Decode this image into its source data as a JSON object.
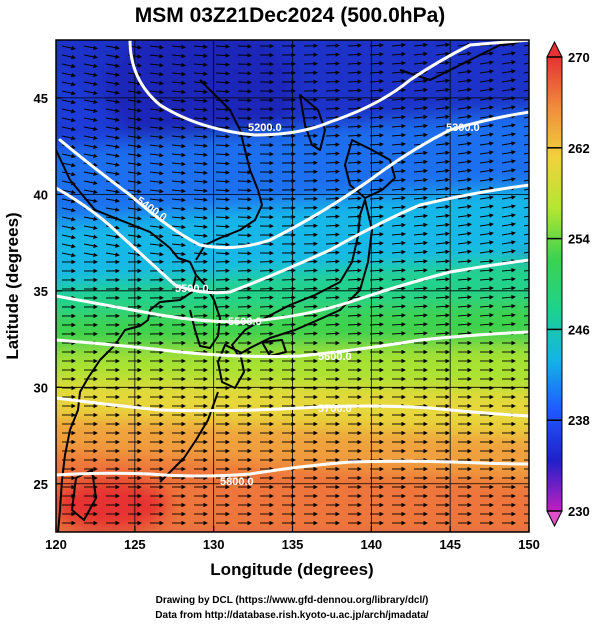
{
  "title": "MSM 03Z21Dec2024 (500.0hPa)",
  "x_axis": {
    "label": "Longitude (degrees)",
    "range": [
      120,
      150
    ],
    "ticks": [
      "120",
      "125",
      "130",
      "135",
      "140",
      "145",
      "150"
    ]
  },
  "y_axis": {
    "label": "Latitude  (degrees)",
    "range": [
      22.5,
      48
    ],
    "ticks": [
      "25",
      "30",
      "35",
      "40",
      "45"
    ]
  },
  "colorbar": {
    "range": [
      230,
      270
    ],
    "ticks": [
      "270",
      "262",
      "254",
      "246",
      "238",
      "230"
    ],
    "stops": [
      "#c020c0",
      "#2020c8",
      "#1e5aff",
      "#14b4e6",
      "#1ed28c",
      "#3cd250",
      "#b4e632",
      "#f0d23c",
      "#f08c3c",
      "#e63232"
    ]
  },
  "contours": [
    {
      "label": "5200.0"
    },
    {
      "label": "5300.0"
    },
    {
      "label": "5400.0"
    },
    {
      "label": "5500.0"
    },
    {
      "label": "5600.0"
    },
    {
      "label": "5700.0"
    },
    {
      "label": "5800.0"
    }
  ],
  "credits": [
    "Drawing by DCL (https://www.gfd-dennou.org/library/dcl/)",
    "Data from http://database.rish.kyoto-u.ac.jp/arch/jmadata/"
  ]
}
